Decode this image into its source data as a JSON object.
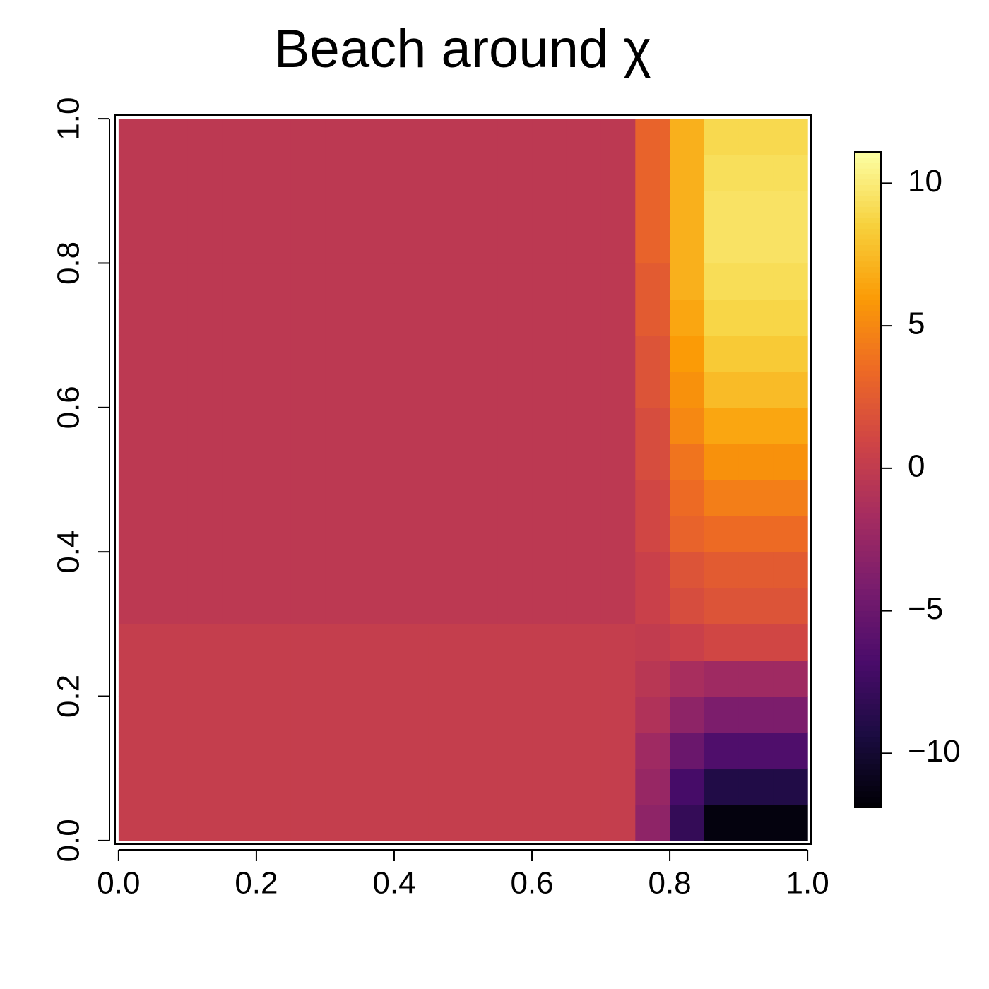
{
  "chart_data": {
    "type": "heatmap",
    "title": "Beach around χ",
    "colormap": "inferno",
    "x": [
      0.025,
      0.075,
      0.125,
      0.175,
      0.225,
      0.275,
      0.325,
      0.375,
      0.425,
      0.475,
      0.525,
      0.575,
      0.625,
      0.675,
      0.725,
      0.775,
      0.825,
      0.875,
      0.925,
      0.975
    ],
    "y": [
      0.025,
      0.075,
      0.125,
      0.175,
      0.225,
      0.275,
      0.325,
      0.375,
      0.425,
      0.475,
      0.525,
      0.575,
      0.625,
      0.675,
      0.725,
      0.775,
      0.825,
      0.875,
      0.925,
      0.975
    ],
    "z": [
      [
        0.2,
        0.2,
        0.2,
        0.2,
        0.2,
        0.2,
        0.2,
        0.2,
        0.2,
        0.2,
        0.2,
        0.2,
        0.2,
        0.2,
        0.2,
        -3,
        -8,
        -11.5,
        -11.5,
        -11.5
      ],
      [
        0.2,
        0.2,
        0.2,
        0.2,
        0.2,
        0.2,
        0.2,
        0.2,
        0.2,
        0.2,
        0.2,
        0.2,
        0.2,
        0.2,
        0.2,
        -2.5,
        -7,
        -9,
        -9,
        -9
      ],
      [
        0.2,
        0.2,
        0.2,
        0.2,
        0.2,
        0.2,
        0.2,
        0.2,
        0.2,
        0.2,
        0.2,
        0.2,
        0.2,
        0.2,
        0.2,
        -2,
        -5,
        -6.5,
        -6.5,
        -6.5
      ],
      [
        0.2,
        0.2,
        0.2,
        0.2,
        0.2,
        0.2,
        0.2,
        0.2,
        0.2,
        0.2,
        0.2,
        0.2,
        0.2,
        0.2,
        0.2,
        -1,
        -3,
        -4,
        -4,
        -4
      ],
      [
        0.2,
        0.2,
        0.2,
        0.2,
        0.2,
        0.2,
        0.2,
        0.2,
        0.2,
        0.2,
        0.2,
        0.2,
        0.2,
        0.2,
        0.2,
        -0.5,
        -1.5,
        -2,
        -2,
        -2
      ],
      [
        0.2,
        0.2,
        0.2,
        0.2,
        0.2,
        0.2,
        0.2,
        0.2,
        0.2,
        0.2,
        0.2,
        0.2,
        0.2,
        0.2,
        0.2,
        0,
        0.5,
        1,
        1,
        1
      ],
      [
        -0.3,
        -0.3,
        -0.3,
        -0.3,
        -0.3,
        -0.3,
        -0.3,
        -0.3,
        -0.3,
        -0.3,
        -0.3,
        -0.3,
        -0.3,
        -0.3,
        -0.3,
        0.5,
        1.5,
        2,
        2,
        2
      ],
      [
        -0.3,
        -0.3,
        -0.3,
        -0.3,
        -0.3,
        -0.3,
        -0.3,
        -0.3,
        -0.3,
        -0.3,
        -0.3,
        -0.3,
        -0.3,
        -0.3,
        -0.3,
        0.5,
        2,
        2.5,
        2.5,
        2.5
      ],
      [
        -0.3,
        -0.3,
        -0.3,
        -0.3,
        -0.3,
        -0.3,
        -0.3,
        -0.3,
        -0.3,
        -0.3,
        -0.3,
        -0.3,
        -0.3,
        -0.3,
        -0.3,
        1,
        3,
        3.5,
        3.5,
        3.5
      ],
      [
        -0.3,
        -0.3,
        -0.3,
        -0.3,
        -0.3,
        -0.3,
        -0.3,
        -0.3,
        -0.3,
        -0.3,
        -0.3,
        -0.3,
        -0.3,
        -0.3,
        -0.3,
        1,
        3.5,
        4.5,
        4.5,
        4.5
      ],
      [
        -0.3,
        -0.3,
        -0.3,
        -0.3,
        -0.3,
        -0.3,
        -0.3,
        -0.3,
        -0.3,
        -0.3,
        -0.3,
        -0.3,
        -0.3,
        -0.3,
        -0.3,
        1.5,
        4,
        5.5,
        5.5,
        5.5
      ],
      [
        -0.3,
        -0.3,
        -0.3,
        -0.3,
        -0.3,
        -0.3,
        -0.3,
        -0.3,
        -0.3,
        -0.3,
        -0.3,
        -0.3,
        -0.3,
        -0.3,
        -0.3,
        1.5,
        5,
        6.5,
        6.5,
        6.5
      ],
      [
        -0.3,
        -0.3,
        -0.3,
        -0.3,
        -0.3,
        -0.3,
        -0.3,
        -0.3,
        -0.3,
        -0.3,
        -0.3,
        -0.3,
        -0.3,
        -0.3,
        -0.3,
        2,
        5.5,
        7.5,
        7.5,
        7.5
      ],
      [
        -0.3,
        -0.3,
        -0.3,
        -0.3,
        -0.3,
        -0.3,
        -0.3,
        -0.3,
        -0.3,
        -0.3,
        -0.3,
        -0.3,
        -0.3,
        -0.3,
        -0.3,
        2,
        6,
        8.2,
        8.2,
        8.2
      ],
      [
        -0.3,
        -0.3,
        -0.3,
        -0.3,
        -0.3,
        -0.3,
        -0.3,
        -0.3,
        -0.3,
        -0.3,
        -0.3,
        -0.3,
        -0.3,
        -0.3,
        -0.3,
        2.5,
        6.5,
        8.8,
        8.8,
        8.8
      ],
      [
        -0.3,
        -0.3,
        -0.3,
        -0.3,
        -0.3,
        -0.3,
        -0.3,
        -0.3,
        -0.3,
        -0.3,
        -0.3,
        -0.3,
        -0.3,
        -0.3,
        -0.3,
        2.5,
        7,
        9.2,
        9.2,
        9.2
      ],
      [
        -0.3,
        -0.3,
        -0.3,
        -0.3,
        -0.3,
        -0.3,
        -0.3,
        -0.3,
        -0.3,
        -0.3,
        -0.3,
        -0.3,
        -0.3,
        -0.3,
        -0.3,
        3,
        7,
        9.5,
        9.5,
        9.5
      ],
      [
        -0.3,
        -0.3,
        -0.3,
        -0.3,
        -0.3,
        -0.3,
        -0.3,
        -0.3,
        -0.3,
        -0.3,
        -0.3,
        -0.3,
        -0.3,
        -0.3,
        -0.3,
        3,
        7,
        9.5,
        9.5,
        9.5
      ],
      [
        -0.3,
        -0.3,
        -0.3,
        -0.3,
        -0.3,
        -0.3,
        -0.3,
        -0.3,
        -0.3,
        -0.3,
        -0.3,
        -0.3,
        -0.3,
        -0.3,
        -0.3,
        3,
        7,
        9.3,
        9.3,
        9.3
      ],
      [
        -0.3,
        -0.3,
        -0.3,
        -0.3,
        -0.3,
        -0.3,
        -0.3,
        -0.3,
        -0.3,
        -0.3,
        -0.3,
        -0.3,
        -0.3,
        -0.3,
        -0.3,
        3,
        7,
        9,
        9,
        9
      ]
    ],
    "xlim": [
      -0.005,
      1.005
    ],
    "ylim": [
      -0.005,
      1.005
    ],
    "xticks": [
      {
        "value": 0,
        "label": "0.0"
      },
      0.2,
      0.4,
      0.6,
      0.8,
      {
        "value": 1,
        "label": "1.0"
      }
    ],
    "yticks": [
      {
        "value": 0,
        "label": "0.0"
      },
      0.2,
      0.4,
      0.6,
      0.8,
      {
        "value": 1,
        "label": "1.0"
      }
    ],
    "zlim": [
      -11.9,
      11.1
    ],
    "zticks": [
      {
        "value": -10,
        "label": "−10"
      },
      {
        "value": -5,
        "label": "−5"
      },
      0,
      5,
      10
    ]
  }
}
